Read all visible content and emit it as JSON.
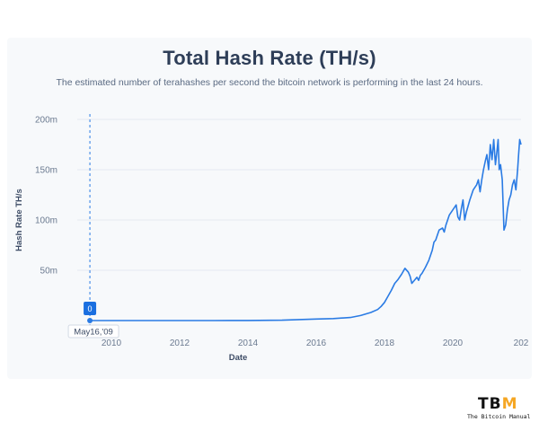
{
  "header": {
    "title": "Total Hash Rate (TH/s)",
    "subtitle": "The estimated number of terahashes per second the bitcoin network is performing in the last 24 hours."
  },
  "tooltip": {
    "value": "0",
    "date": "May16,'09"
  },
  "logo": {
    "mark_t": "T",
    "mark_b": "B",
    "mark_m": "M",
    "tagline": "The Bitcoin Manual"
  },
  "colors": {
    "line": "#2a7be4",
    "grid": "#e4e9f0",
    "accent": "#f5a623"
  },
  "chart_data": {
    "type": "line",
    "title": "Total Hash Rate (TH/s)",
    "xlabel": "Date",
    "ylabel": "Hash Rate TH/s",
    "x_ticks": [
      "2010",
      "2012",
      "2014",
      "2016",
      "2018",
      "2020",
      "202"
    ],
    "y_ticks": [
      "50m",
      "100m",
      "150m",
      "200m"
    ],
    "xlim": [
      2009.0,
      2022.0
    ],
    "ylim": [
      0,
      200000000
    ],
    "grid": true,
    "series": [
      {
        "x": [
          2009.37,
          2010,
          2011,
          2012,
          2013,
          2014,
          2015,
          2016,
          2016.5,
          2017.0,
          2017.3,
          2017.6,
          2017.8,
          2017.9,
          2018.0,
          2018.1,
          2018.2,
          2018.3,
          2018.4,
          2018.5,
          2018.6,
          2018.7,
          2018.75,
          2018.8,
          2018.9,
          2018.95,
          2019.0,
          2019.05,
          2019.1,
          2019.2,
          2019.3,
          2019.4,
          2019.45,
          2019.5,
          2019.55,
          2019.6,
          2019.7,
          2019.75,
          2019.8,
          2019.85,
          2019.9,
          2020.0,
          2020.1,
          2020.15,
          2020.2,
          2020.25,
          2020.3,
          2020.35,
          2020.4,
          2020.5,
          2020.55,
          2020.6,
          2020.7,
          2020.75,
          2020.8,
          2020.85,
          2020.9,
          2020.95,
          2021.0,
          2021.05,
          2021.1,
          2021.15,
          2021.2,
          2021.25,
          2021.3,
          2021.33,
          2021.36,
          2021.4,
          2021.45,
          2021.5,
          2021.55,
          2021.6,
          2021.65,
          2021.7,
          2021.75,
          2021.8,
          2021.85,
          2021.9,
          2021.93,
          2021.96,
          2022.0
        ],
        "y": [
          0,
          0,
          0,
          10000,
          10000,
          100000,
          400000,
          1500000,
          2000000,
          3000000,
          5000000,
          8000000,
          11000000,
          14000000,
          18000000,
          24000000,
          30000000,
          37000000,
          41000000,
          46000000,
          52000000,
          48000000,
          44000000,
          37000000,
          41000000,
          43000000,
          40000000,
          45000000,
          47000000,
          53000000,
          60000000,
          70000000,
          78000000,
          80000000,
          85000000,
          90000000,
          92000000,
          88000000,
          95000000,
          100000000,
          105000000,
          110000000,
          115000000,
          103000000,
          100000000,
          111000000,
          120000000,
          100000000,
          108000000,
          120000000,
          125000000,
          130000000,
          135000000,
          140000000,
          128000000,
          140000000,
          150000000,
          158000000,
          165000000,
          150000000,
          175000000,
          160000000,
          180000000,
          155000000,
          170000000,
          180000000,
          150000000,
          155000000,
          140000000,
          90000000,
          95000000,
          110000000,
          120000000,
          125000000,
          135000000,
          140000000,
          130000000,
          150000000,
          165000000,
          180000000,
          175000000
        ]
      }
    ],
    "tooltip_point": {
      "x": 2009.37,
      "y": 0
    }
  }
}
